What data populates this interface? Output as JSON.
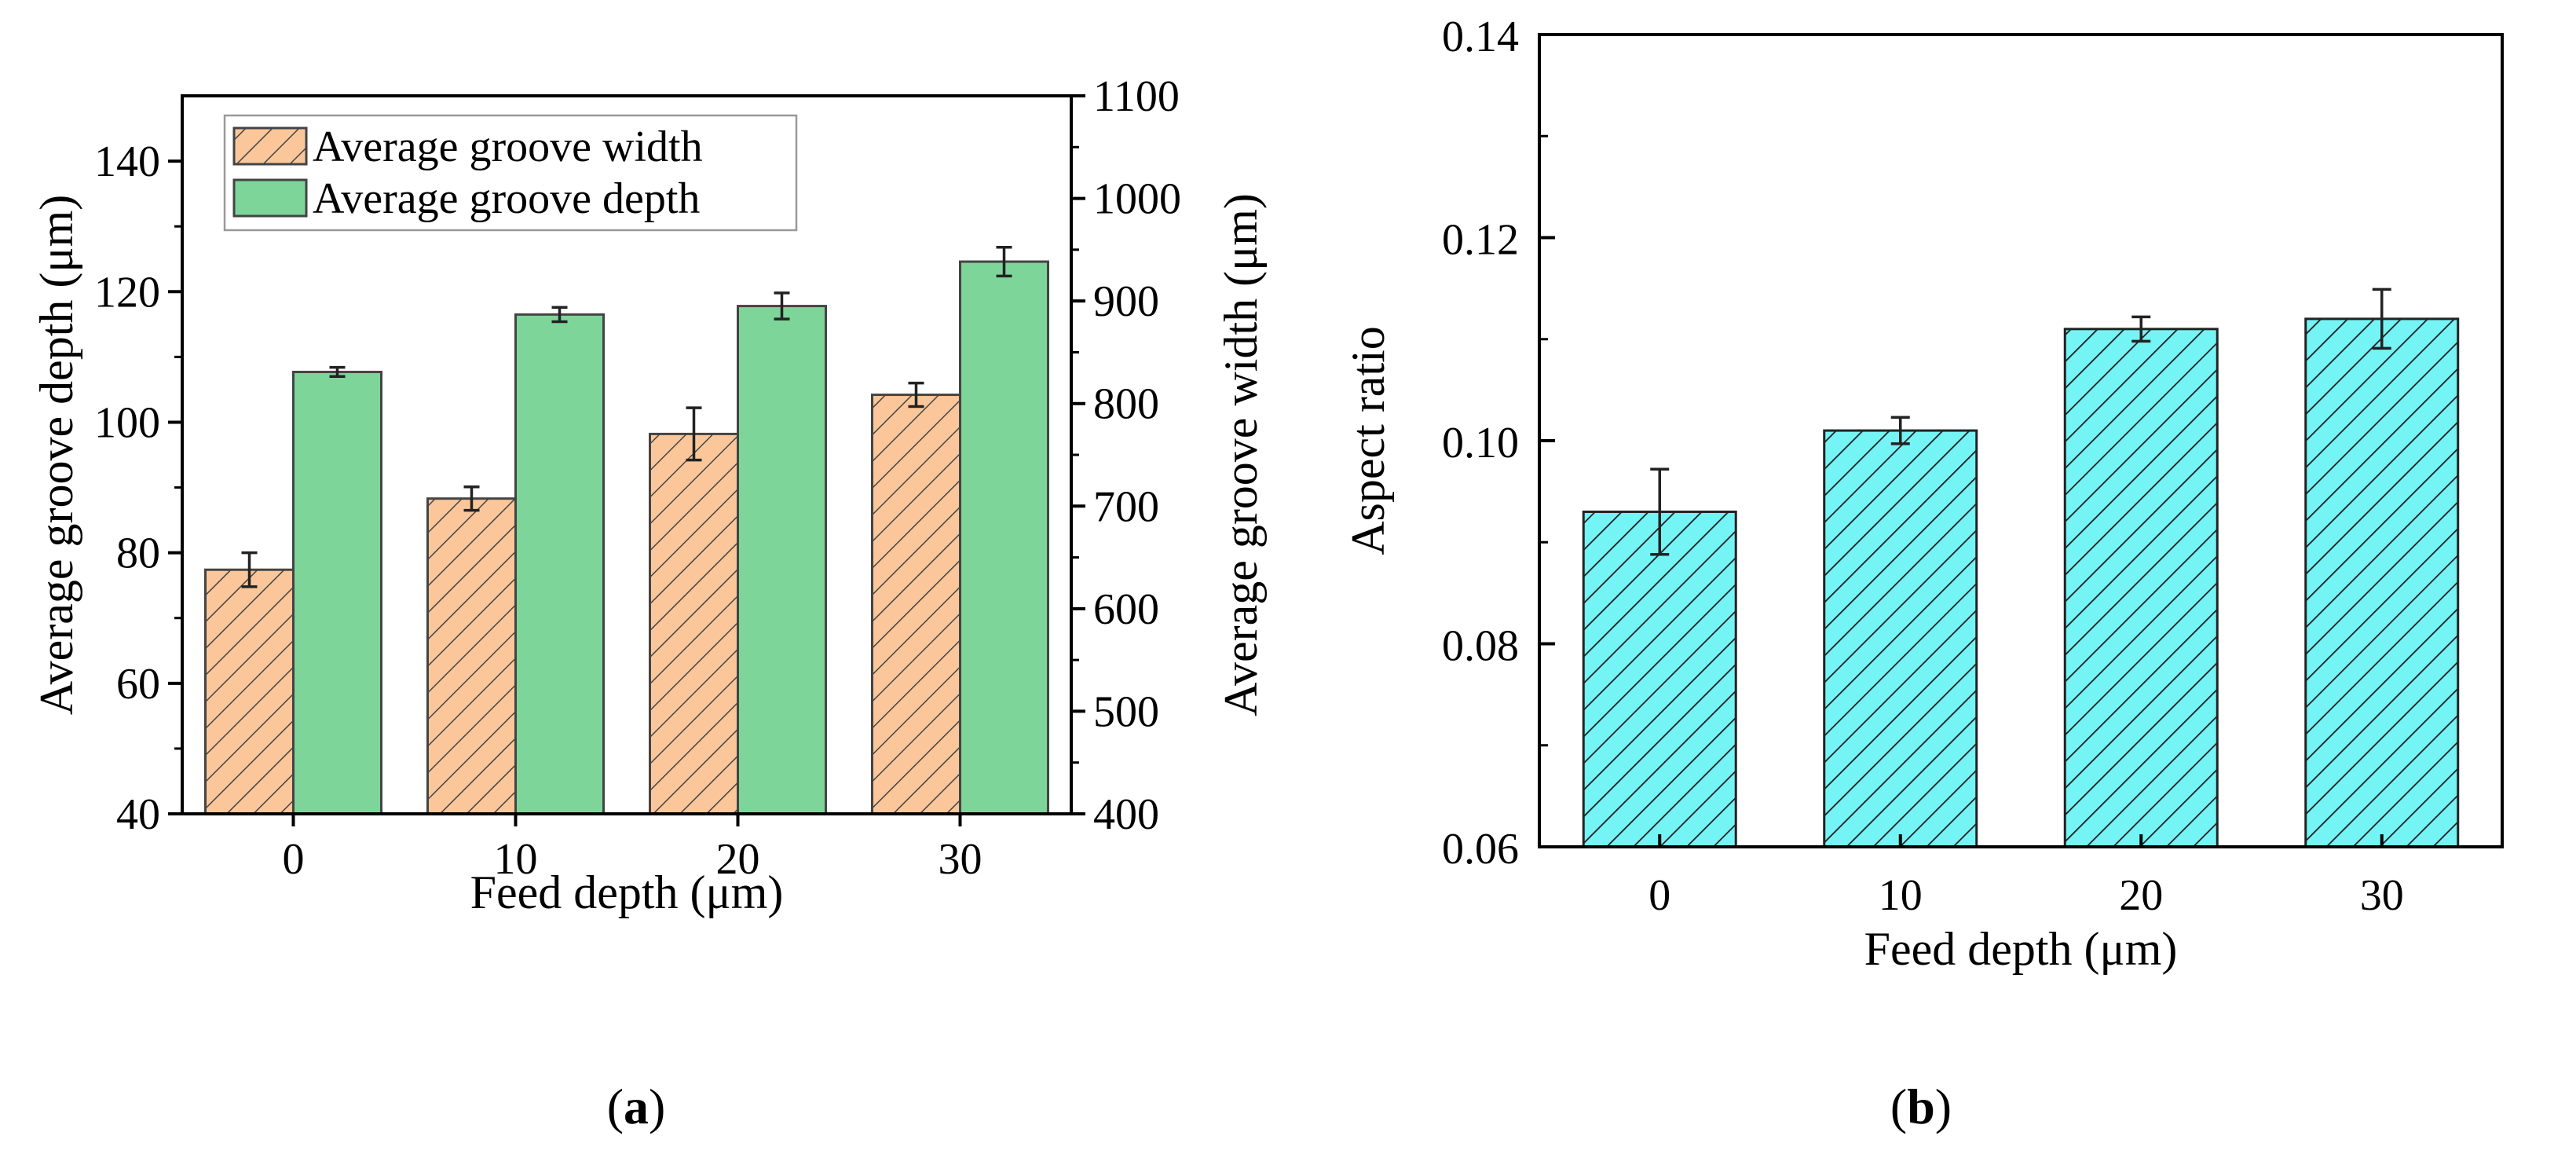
{
  "chart_data": [
    {
      "type": "bar",
      "panel": "(a)",
      "panel_label_prefix": "(",
      "panel_label_letter": "a",
      "panel_label_suffix": ")",
      "xlabel": "Feed depth (μm)",
      "ylabel": "Average groove depth (μm)",
      "y2label": "Average groove width (μm)",
      "categories": [
        "0",
        "10",
        "20",
        "30"
      ],
      "ylim": [
        40,
        150
      ],
      "yticks": [
        40,
        60,
        80,
        100,
        120,
        140
      ],
      "y2lim": [
        400,
        1100
      ],
      "y2ticks": [
        400,
        500,
        600,
        700,
        800,
        900,
        1000,
        1100
      ],
      "series": [
        {
          "name": "Average groove width",
          "axis": "left",
          "values": [
            77.4,
            88.3,
            98.2,
            104.2
          ],
          "errors": [
            2.6,
            1.8,
            4.0,
            1.8
          ],
          "color": "#fbc79a",
          "hatch": true
        },
        {
          "name": "Average groove depth",
          "axis": "left",
          "values": [
            107.7,
            116.5,
            117.8,
            124.6
          ],
          "errors": [
            0.7,
            1.1,
            2.0,
            2.2
          ],
          "color": "#7dd59a",
          "hatch": false
        }
      ],
      "legend_position": "top-left"
    },
    {
      "type": "bar",
      "panel": "(b)",
      "panel_label_prefix": "(",
      "panel_label_letter": "b",
      "panel_label_suffix": ")",
      "xlabel": "Feed depth (μm)",
      "ylabel": "Aspect ratio",
      "categories": [
        "0",
        "10",
        "20",
        "30"
      ],
      "ylim": [
        0.06,
        0.14
      ],
      "yticks": [
        "0.06",
        "0.08",
        "0.10",
        "0.12",
        "0.14"
      ],
      "series": [
        {
          "name": "Aspect ratio",
          "values": [
            0.093,
            0.101,
            0.111,
            0.112
          ],
          "errors": [
            0.0042,
            0.0013,
            0.0012,
            0.0029
          ],
          "color": "#75f4f6",
          "hatch": true
        }
      ]
    }
  ]
}
